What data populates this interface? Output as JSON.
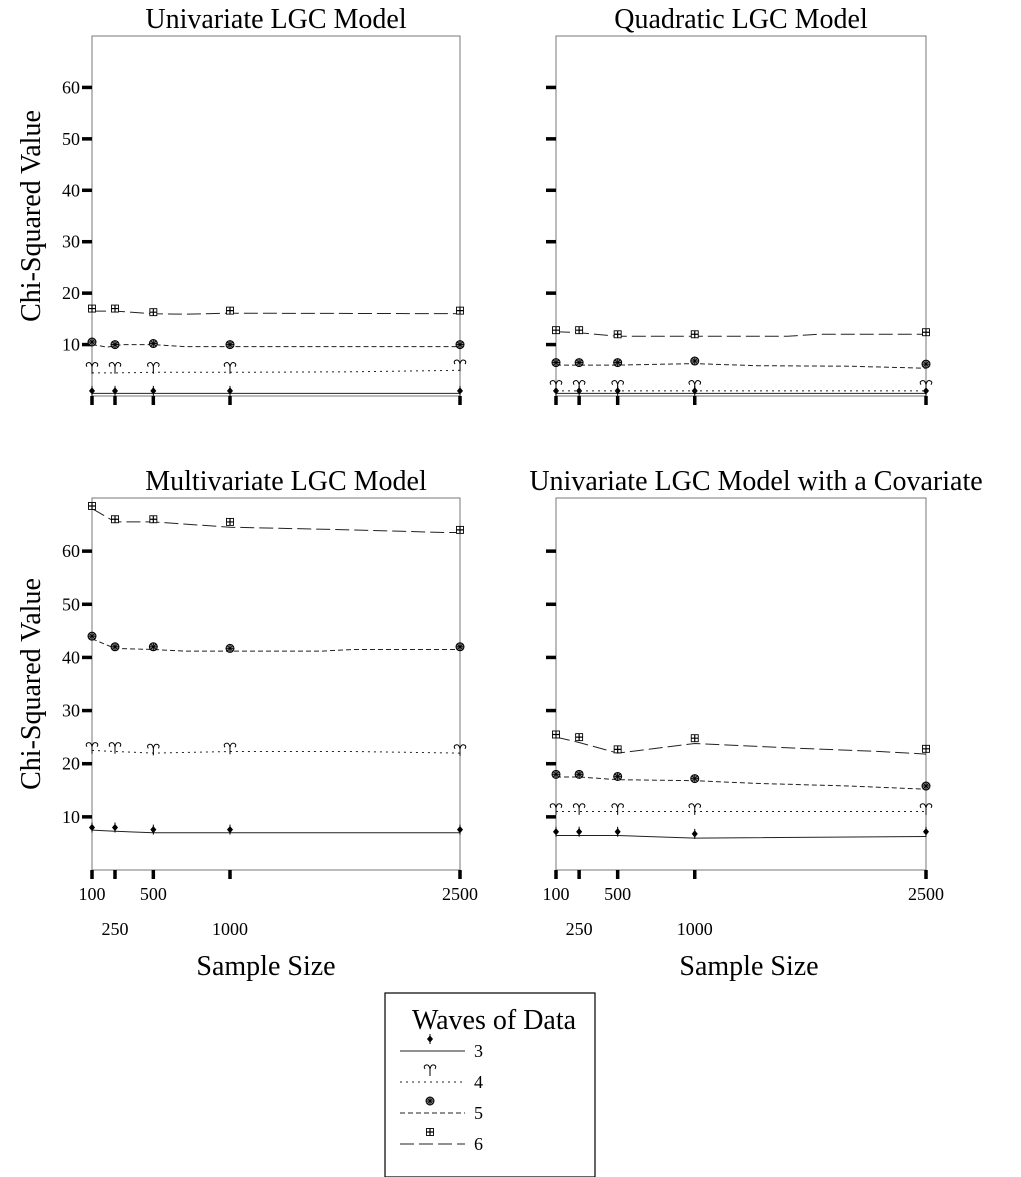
{
  "chart_data": [
    {
      "type": "line",
      "title": "Univariate LGC Model",
      "ylabel": "Chi-Squared Value",
      "xlabel": "",
      "ylim": [
        0,
        70
      ],
      "yticks": [
        10,
        20,
        30,
        40,
        50,
        60
      ],
      "ytick_labels": [
        "10",
        "20",
        "30",
        "40",
        "50",
        "60"
      ],
      "ytick_labels_visible": true,
      "xticks": [
        100,
        250,
        500,
        1000,
        2500
      ],
      "xtick_labels": [],
      "xlim": [
        100,
        2500
      ],
      "grid": false,
      "series": [
        {
          "name": "3",
          "x": [
            100,
            250,
            500,
            1000,
            2500
          ],
          "y": [
            1.0,
            1.0,
            1.0,
            1.0,
            1.0
          ],
          "line": [
            [
              100,
              0.5
            ],
            [
              2500,
              0.5
            ]
          ]
        },
        {
          "name": "4",
          "x": [
            100,
            250,
            500,
            1000,
            2500
          ],
          "y": [
            5.5,
            5.5,
            5.5,
            5.5,
            6.0
          ],
          "line": [
            [
              100,
              4.5
            ],
            [
              250,
              4.5
            ],
            [
              500,
              4.6
            ],
            [
              1000,
              4.6
            ],
            [
              1800,
              4.7
            ],
            [
              2500,
              5.0
            ]
          ]
        },
        {
          "name": "5",
          "x": [
            100,
            250,
            500,
            1000,
            2500
          ],
          "y": [
            10.5,
            10.0,
            10.2,
            10.0,
            10.0
          ],
          "line": [
            [
              100,
              10.0
            ],
            [
              200,
              9.5
            ],
            [
              300,
              10.0
            ],
            [
              500,
              10.0
            ],
            [
              700,
              9.6
            ],
            [
              2500,
              9.6
            ]
          ]
        },
        {
          "name": "6",
          "x": [
            100,
            250,
            500,
            1000,
            2500
          ],
          "y": [
            17.0,
            17.0,
            16.3,
            16.6,
            16.6
          ],
          "line": [
            [
              100,
              16.5
            ],
            [
              250,
              16.5
            ],
            [
              500,
              16.0
            ],
            [
              700,
              15.9
            ],
            [
              1000,
              16.1
            ],
            [
              2500,
              16.0
            ]
          ]
        }
      ]
    },
    {
      "type": "line",
      "title": "Quadratic LGC Model",
      "ylabel": "",
      "xlabel": "",
      "ylim": [
        0,
        70
      ],
      "yticks": [
        10,
        20,
        30,
        40,
        50,
        60
      ],
      "ytick_labels": [],
      "ytick_labels_visible": false,
      "xticks": [
        100,
        250,
        500,
        1000,
        2500
      ],
      "xtick_labels": [],
      "xlim": [
        100,
        2500
      ],
      "grid": false,
      "series": [
        {
          "name": "3",
          "x": [
            100,
            250,
            500,
            1000,
            2500
          ],
          "y": [
            1.0,
            1.0,
            1.0,
            1.0,
            1.0
          ],
          "line": [
            [
              100,
              0.5
            ],
            [
              2500,
              0.5
            ]
          ]
        },
        {
          "name": "4",
          "x": [
            100,
            250,
            500,
            1000,
            2500
          ],
          "y": [
            2.0,
            2.0,
            2.0,
            2.0,
            2.0
          ],
          "line": [
            [
              100,
              1.0
            ],
            [
              2500,
              1.0
            ]
          ]
        },
        {
          "name": "5",
          "x": [
            100,
            250,
            500,
            1000,
            2500
          ],
          "y": [
            6.5,
            6.5,
            6.5,
            6.8,
            6.2
          ],
          "line": [
            [
              100,
              6.0
            ],
            [
              500,
              6.0
            ],
            [
              1000,
              6.3
            ],
            [
              1400,
              5.9
            ],
            [
              2000,
              5.8
            ],
            [
              2500,
              5.4
            ]
          ]
        },
        {
          "name": "6",
          "x": [
            100,
            250,
            500,
            1000,
            2500
          ],
          "y": [
            12.8,
            12.8,
            12.0,
            12.0,
            12.4
          ],
          "line": [
            [
              100,
              12.5
            ],
            [
              250,
              12.3
            ],
            [
              500,
              11.6
            ],
            [
              1600,
              11.6
            ],
            [
              1800,
              12.0
            ],
            [
              2500,
              12.0
            ]
          ]
        }
      ]
    },
    {
      "type": "line",
      "title": "Multivariate LGC Model",
      "ylabel": "Chi-Squared Value",
      "xlabel": "Sample Size",
      "ylim": [
        0,
        70
      ],
      "yticks": [
        10,
        20,
        30,
        40,
        50,
        60
      ],
      "ytick_labels": [
        "10",
        "20",
        "30",
        "40",
        "50",
        "60"
      ],
      "ytick_labels_visible": true,
      "xticks": [
        100,
        250,
        500,
        1000,
        2500
      ],
      "xtick_labels": [
        "100",
        "250",
        "500",
        "1000",
        "2500"
      ],
      "xlim": [
        100,
        2500
      ],
      "grid": false,
      "series": [
        {
          "name": "3",
          "x": [
            100,
            250,
            500,
            1000,
            2500
          ],
          "y": [
            8.0,
            8.0,
            7.6,
            7.6,
            7.6
          ],
          "line": [
            [
              100,
              7.5
            ],
            [
              250,
              7.3
            ],
            [
              500,
              7.0
            ],
            [
              2500,
              7.0
            ]
          ]
        },
        {
          "name": "4",
          "x": [
            100,
            250,
            500,
            1000,
            2500
          ],
          "y": [
            23.0,
            23.0,
            22.7,
            22.9,
            22.6
          ],
          "line": [
            [
              100,
              22.5
            ],
            [
              250,
              22.3
            ],
            [
              500,
              22.0
            ],
            [
              1000,
              22.3
            ],
            [
              1800,
              22.3
            ],
            [
              2500,
              22.0
            ]
          ]
        },
        {
          "name": "5",
          "x": [
            100,
            250,
            500,
            1000,
            2500
          ],
          "y": [
            44.0,
            42.0,
            42.0,
            41.7,
            42.0
          ],
          "line": [
            [
              100,
              43.5
            ],
            [
              250,
              41.7
            ],
            [
              500,
              41.5
            ],
            [
              700,
              41.2
            ],
            [
              1600,
              41.2
            ],
            [
              1800,
              41.5
            ],
            [
              2500,
              41.5
            ]
          ]
        },
        {
          "name": "6",
          "x": [
            100,
            250,
            500,
            1000,
            2500
          ],
          "y": [
            68.5,
            66.0,
            66.0,
            65.5,
            64.0
          ],
          "line": [
            [
              100,
              68.0
            ],
            [
              250,
              65.5
            ],
            [
              500,
              65.5
            ],
            [
              1000,
              64.5
            ],
            [
              1800,
              64.0
            ],
            [
              2400,
              63.5
            ],
            [
              2500,
              63.5
            ]
          ]
        }
      ]
    },
    {
      "type": "line",
      "title": "Univariate LGC Model with a Covariate",
      "ylabel": "",
      "xlabel": "Sample Size",
      "ylim": [
        0,
        70
      ],
      "yticks": [
        10,
        20,
        30,
        40,
        50,
        60
      ],
      "ytick_labels": [],
      "ytick_labels_visible": false,
      "xticks": [
        100,
        250,
        500,
        1000,
        2500
      ],
      "xtick_labels": [
        "100",
        "250",
        "500",
        "1000",
        "2500"
      ],
      "xlim": [
        100,
        2500
      ],
      "grid": false,
      "series": [
        {
          "name": "3",
          "x": [
            100,
            250,
            500,
            1000,
            2500
          ],
          "y": [
            7.2,
            7.2,
            7.2,
            6.8,
            7.2
          ],
          "line": [
            [
              100,
              6.5
            ],
            [
              500,
              6.5
            ],
            [
              1000,
              6.0
            ],
            [
              2500,
              6.3
            ]
          ]
        },
        {
          "name": "4",
          "x": [
            100,
            250,
            500,
            1000,
            2500
          ],
          "y": [
            11.5,
            11.5,
            11.5,
            11.5,
            11.5
          ],
          "line": [
            [
              100,
              11.0
            ],
            [
              2500,
              11.0
            ]
          ]
        },
        {
          "name": "5",
          "x": [
            100,
            250,
            500,
            1000,
            2500
          ],
          "y": [
            18.0,
            18.0,
            17.6,
            17.2,
            15.8
          ],
          "line": [
            [
              100,
              17.5
            ],
            [
              250,
              17.5
            ],
            [
              500,
              17.0
            ],
            [
              1000,
              16.8
            ],
            [
              1400,
              16.3
            ],
            [
              2000,
              15.8
            ],
            [
              2500,
              15.2
            ]
          ]
        },
        {
          "name": "6",
          "x": [
            100,
            250,
            500,
            1000,
            2500
          ],
          "y": [
            25.5,
            25.0,
            22.7,
            24.8,
            22.8
          ],
          "line": [
            [
              100,
              25.0
            ],
            [
              250,
              24.0
            ],
            [
              500,
              22.0
            ],
            [
              1000,
              23.8
            ],
            [
              1600,
              23.0
            ],
            [
              2200,
              22.3
            ],
            [
              2500,
              21.8
            ]
          ]
        }
      ]
    }
  ],
  "legend": {
    "title": "Waves of Data",
    "placement": "bottom-center",
    "entries": [
      {
        "label": "3",
        "series": "3"
      },
      {
        "label": "4",
        "series": "4"
      },
      {
        "label": "5",
        "series": "5"
      },
      {
        "label": "6",
        "series": "6"
      }
    ]
  },
  "styles": {
    "3": {
      "dash": "",
      "marker": "diamond"
    },
    "4": {
      "dash": "2,4",
      "marker": "aries"
    },
    "5": {
      "dash": "5,3",
      "marker": "wheel"
    },
    "6": {
      "dash": "14,5",
      "marker": "cross"
    }
  }
}
